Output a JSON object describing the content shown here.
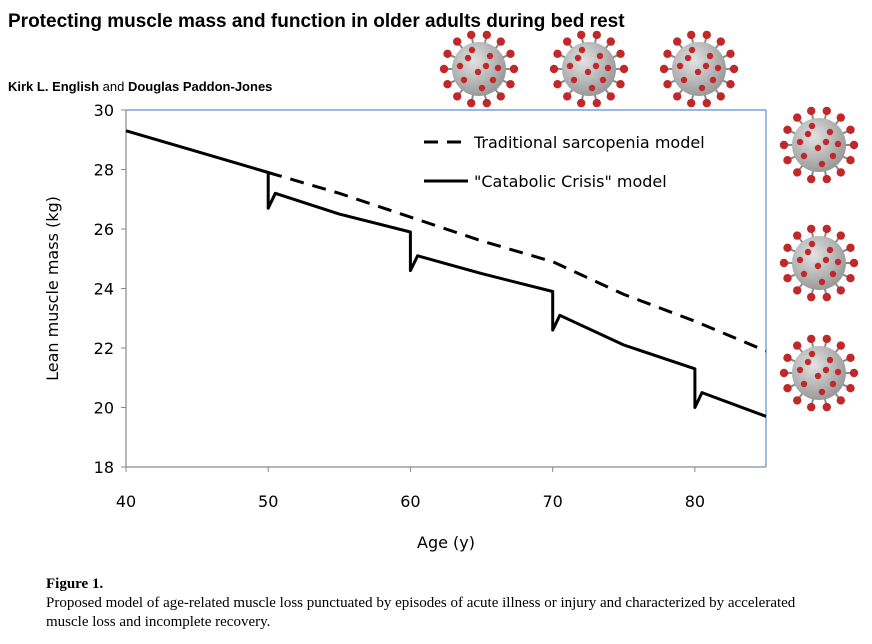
{
  "paper": {
    "title": "Protecting muscle mass and function in older adults during bed rest",
    "author_1": "Kirk L. English",
    "author_join": " and ",
    "author_2": "Douglas Paddon-Jones"
  },
  "figure": {
    "label": "Figure 1.",
    "caption": "Proposed model of age-related muscle loss punctuated by episodes of acute illness or injury and characterized by accelerated muscle loss and incomplete recovery."
  },
  "decorations": {
    "virus_icon": "coronavirus-icon",
    "count": 6,
    "colors": {
      "body": "#9a9a9a",
      "spike": "#c0282a"
    }
  },
  "chart_data": {
    "type": "line",
    "title": "",
    "xlabel": "Age (y)",
    "ylabel": "Lean muscle mass (kg)",
    "xlim": [
      40,
      85
    ],
    "ylim": [
      18,
      30
    ],
    "xticks": [
      40,
      50,
      60,
      70,
      80
    ],
    "yticks": [
      18,
      20,
      22,
      24,
      26,
      28,
      30
    ],
    "grid": false,
    "legend_position": "top-right",
    "series": [
      {
        "name": "Traditional sarcopenia model",
        "style": "dashed",
        "color": "#000000",
        "x": [
          50,
          55,
          60,
          65,
          70,
          75,
          80,
          85
        ],
        "y": [
          27.9,
          27.2,
          26.4,
          25.6,
          24.9,
          23.8,
          22.9,
          21.9
        ]
      },
      {
        "name": "\"Catabolic Crisis\" model",
        "style": "solid",
        "color": "#000000",
        "x": [
          40,
          45,
          50,
          50,
          50.5,
          55,
          60,
          60,
          60.5,
          65,
          70,
          70,
          70.5,
          75,
          80,
          80,
          80.5,
          85
        ],
        "y": [
          29.3,
          28.6,
          27.9,
          26.7,
          27.2,
          26.5,
          25.9,
          24.6,
          25.1,
          24.5,
          23.9,
          22.6,
          23.1,
          22.1,
          21.3,
          20.0,
          20.5,
          19.7
        ]
      }
    ]
  }
}
